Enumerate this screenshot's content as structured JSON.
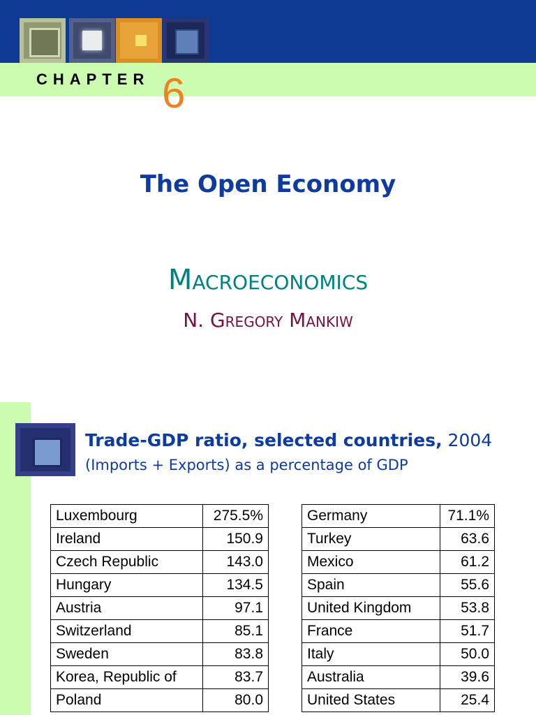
{
  "slide1": {
    "chapter_label": "CHAPTER",
    "chapter_number": "6",
    "title": "The Open Economy",
    "book_title": "Macroeconomics",
    "author": "N. Gregory Mankiw"
  },
  "slide2": {
    "title_bold": "Trade-GDP ratio, selected countries,",
    "title_year": "2004",
    "subtitle": "(Imports + Exports) as a percentage of GDP",
    "left_table": [
      {
        "country": "Luxembourg",
        "value": "275.5%"
      },
      {
        "country": "Ireland",
        "value": "150.9"
      },
      {
        "country": "Czech Republic",
        "value": "143.0"
      },
      {
        "country": "Hungary",
        "value": "134.5"
      },
      {
        "country": "Austria",
        "value": "97.1"
      },
      {
        "country": "Switzerland",
        "value": "85.1"
      },
      {
        "country": "Sweden",
        "value": "83.8"
      },
      {
        "country": "Korea, Republic of",
        "value": "83.7"
      },
      {
        "country": "Poland",
        "value": "80.0"
      }
    ],
    "right_table": [
      {
        "country": "Germany",
        "value": "71.1%"
      },
      {
        "country": "Turkey",
        "value": "63.6"
      },
      {
        "country": "Mexico",
        "value": "61.2"
      },
      {
        "country": "Spain",
        "value": "55.6"
      },
      {
        "country": "United Kingdom",
        "value": "53.8"
      },
      {
        "country": "France",
        "value": "51.7"
      },
      {
        "country": "Italy",
        "value": "50.0"
      },
      {
        "country": "Australia",
        "value": "39.6"
      },
      {
        "country": "United States",
        "value": "25.4"
      }
    ]
  },
  "colors": {
    "header_blue": "#0f3a94",
    "band_green": "#ccfcb0",
    "chapter_orange": "#f08020",
    "title_blue": "#0d3b9e",
    "book_teal": "#008080",
    "author_maroon": "#7a1040"
  }
}
